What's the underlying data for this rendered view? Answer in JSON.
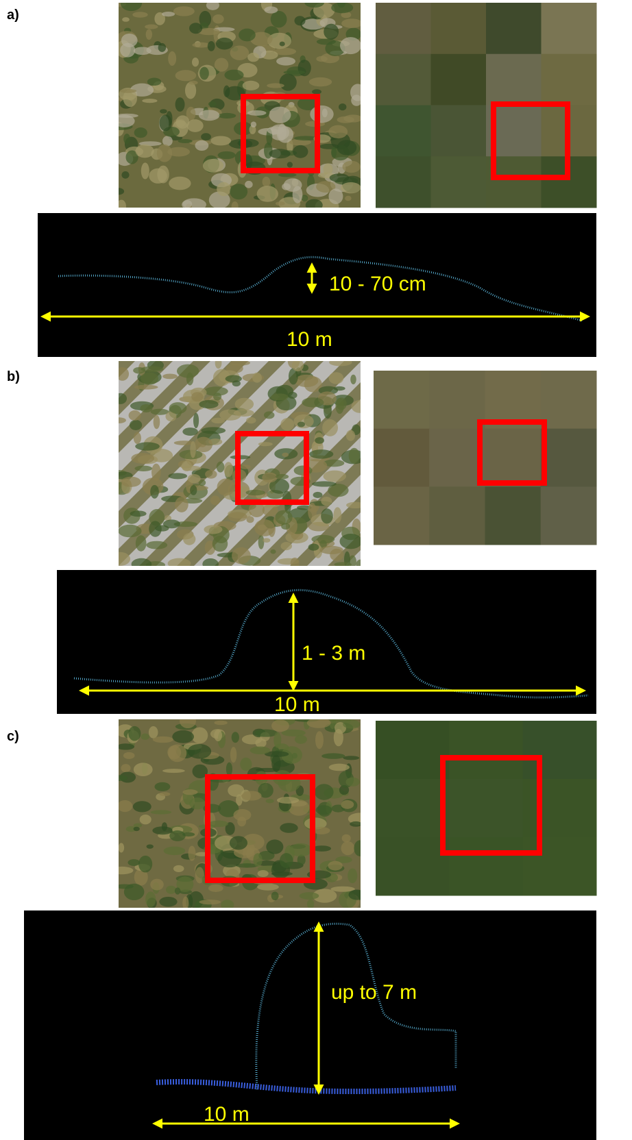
{
  "panels": [
    {
      "label": "a)",
      "height_label": "10 - 70 cm",
      "width_label": "10 m"
    },
    {
      "label": "b)",
      "height_label": "1 - 3 m",
      "width_label": "10 m"
    },
    {
      "label": "c)",
      "height_label": "up to 7 m",
      "width_label": "10 m"
    }
  ]
}
